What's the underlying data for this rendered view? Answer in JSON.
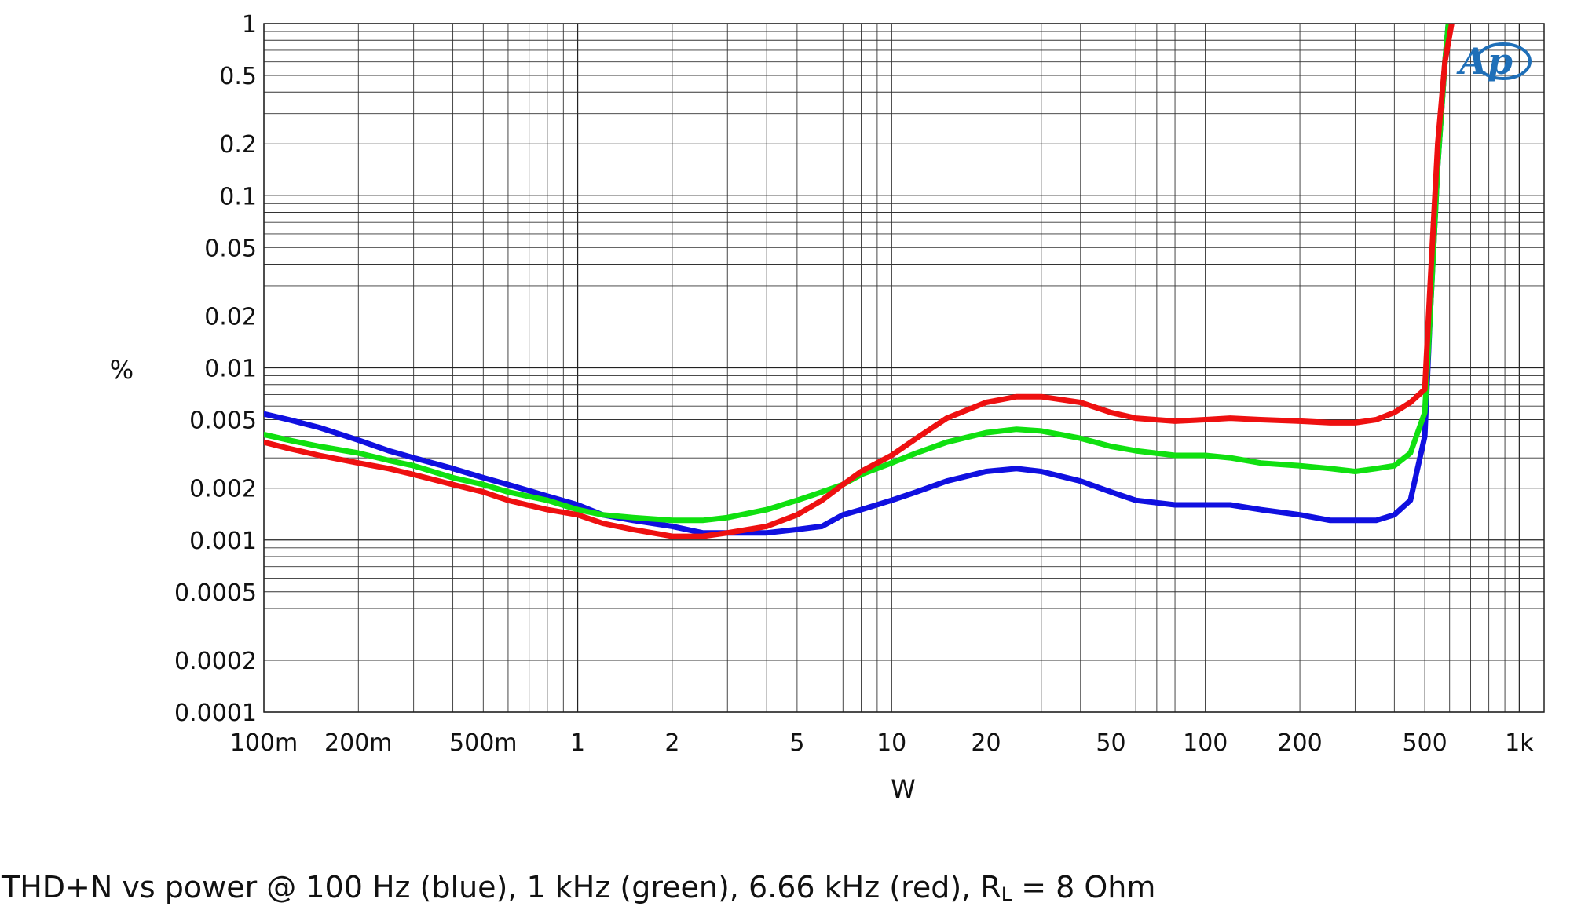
{
  "chart_data": {
    "type": "line",
    "xscale": "log",
    "yscale": "log",
    "xlim": [
      0.1,
      1200
    ],
    "ylim": [
      0.0001,
      1
    ],
    "xlabel": "W",
    "ylabel": "%",
    "grid": true,
    "x_ticks": [
      {
        "value": 0.1,
        "label": "100m"
      },
      {
        "value": 0.2,
        "label": "200m"
      },
      {
        "value": 0.5,
        "label": "500m"
      },
      {
        "value": 1,
        "label": "1"
      },
      {
        "value": 2,
        "label": "2"
      },
      {
        "value": 5,
        "label": "5"
      },
      {
        "value": 10,
        "label": "10"
      },
      {
        "value": 20,
        "label": "20"
      },
      {
        "value": 50,
        "label": "50"
      },
      {
        "value": 100,
        "label": "100"
      },
      {
        "value": 200,
        "label": "200"
      },
      {
        "value": 500,
        "label": "500"
      },
      {
        "value": 1000,
        "label": "1k"
      }
    ],
    "y_ticks": [
      {
        "value": 1,
        "label": "1"
      },
      {
        "value": 0.5,
        "label": "0.5"
      },
      {
        "value": 0.2,
        "label": "0.2"
      },
      {
        "value": 0.1,
        "label": "0.1"
      },
      {
        "value": 0.05,
        "label": "0.05"
      },
      {
        "value": 0.02,
        "label": "0.02"
      },
      {
        "value": 0.01,
        "label": "0.01"
      },
      {
        "value": 0.005,
        "label": "0.005"
      },
      {
        "value": 0.002,
        "label": "0.002"
      },
      {
        "value": 0.001,
        "label": "0.001"
      },
      {
        "value": 0.0005,
        "label": "0.0005"
      },
      {
        "value": 0.0002,
        "label": "0.0002"
      },
      {
        "value": 0.0001,
        "label": "0.0001"
      }
    ],
    "series": [
      {
        "color": "#1010e0",
        "points": [
          [
            0.1,
            0.0054
          ],
          [
            0.12,
            0.005
          ],
          [
            0.15,
            0.0045
          ],
          [
            0.2,
            0.0038
          ],
          [
            0.25,
            0.0033
          ],
          [
            0.3,
            0.003
          ],
          [
            0.4,
            0.0026
          ],
          [
            0.5,
            0.0023
          ],
          [
            0.6,
            0.0021
          ],
          [
            0.8,
            0.0018
          ],
          [
            1,
            0.0016
          ],
          [
            1.2,
            0.0014
          ],
          [
            1.5,
            0.0013
          ],
          [
            2,
            0.0012
          ],
          [
            2.5,
            0.0011
          ],
          [
            3,
            0.0011
          ],
          [
            4,
            0.0011
          ],
          [
            5,
            0.00115
          ],
          [
            6,
            0.0012
          ],
          [
            7,
            0.0014
          ],
          [
            8,
            0.0015
          ],
          [
            10,
            0.0017
          ],
          [
            12,
            0.0019
          ],
          [
            15,
            0.0022
          ],
          [
            20,
            0.0025
          ],
          [
            25,
            0.0026
          ],
          [
            30,
            0.0025
          ],
          [
            40,
            0.0022
          ],
          [
            50,
            0.0019
          ],
          [
            60,
            0.0017
          ],
          [
            80,
            0.0016
          ],
          [
            100,
            0.0016
          ],
          [
            120,
            0.0016
          ],
          [
            150,
            0.0015
          ],
          [
            200,
            0.0014
          ],
          [
            250,
            0.0013
          ],
          [
            300,
            0.0013
          ],
          [
            350,
            0.0013
          ],
          [
            400,
            0.0014
          ],
          [
            450,
            0.0017
          ],
          [
            500,
            0.004
          ],
          [
            520,
            0.02
          ],
          [
            550,
            0.15
          ],
          [
            580,
            0.6
          ],
          [
            600,
            1.2
          ]
        ]
      },
      {
        "color": "#10e010",
        "points": [
          [
            0.1,
            0.0041
          ],
          [
            0.12,
            0.0038
          ],
          [
            0.15,
            0.0035
          ],
          [
            0.2,
            0.0032
          ],
          [
            0.25,
            0.0029
          ],
          [
            0.3,
            0.0027
          ],
          [
            0.4,
            0.0023
          ],
          [
            0.5,
            0.0021
          ],
          [
            0.6,
            0.0019
          ],
          [
            0.8,
            0.0017
          ],
          [
            1,
            0.0015
          ],
          [
            1.2,
            0.0014
          ],
          [
            1.5,
            0.00135
          ],
          [
            2,
            0.0013
          ],
          [
            2.5,
            0.0013
          ],
          [
            3,
            0.00135
          ],
          [
            4,
            0.0015
          ],
          [
            5,
            0.0017
          ],
          [
            6,
            0.0019
          ],
          [
            7,
            0.0021
          ],
          [
            8,
            0.0024
          ],
          [
            10,
            0.0028
          ],
          [
            12,
            0.0032
          ],
          [
            15,
            0.0037
          ],
          [
            20,
            0.0042
          ],
          [
            25,
            0.0044
          ],
          [
            30,
            0.0043
          ],
          [
            40,
            0.0039
          ],
          [
            50,
            0.0035
          ],
          [
            60,
            0.0033
          ],
          [
            80,
            0.0031
          ],
          [
            100,
            0.0031
          ],
          [
            120,
            0.003
          ],
          [
            150,
            0.0028
          ],
          [
            200,
            0.0027
          ],
          [
            250,
            0.0026
          ],
          [
            300,
            0.0025
          ],
          [
            350,
            0.0026
          ],
          [
            400,
            0.0027
          ],
          [
            450,
            0.0032
          ],
          [
            500,
            0.0055
          ],
          [
            520,
            0.02
          ],
          [
            550,
            0.15
          ],
          [
            580,
            0.6
          ],
          [
            600,
            1.2
          ]
        ]
      },
      {
        "color": "#ee1010",
        "points": [
          [
            0.1,
            0.0037
          ],
          [
            0.12,
            0.0034
          ],
          [
            0.15,
            0.0031
          ],
          [
            0.2,
            0.0028
          ],
          [
            0.25,
            0.0026
          ],
          [
            0.3,
            0.0024
          ],
          [
            0.4,
            0.0021
          ],
          [
            0.5,
            0.0019
          ],
          [
            0.6,
            0.0017
          ],
          [
            0.8,
            0.0015
          ],
          [
            1,
            0.0014
          ],
          [
            1.2,
            0.00125
          ],
          [
            1.5,
            0.00115
          ],
          [
            2,
            0.00105
          ],
          [
            2.5,
            0.00105
          ],
          [
            3,
            0.0011
          ],
          [
            4,
            0.0012
          ],
          [
            5,
            0.0014
          ],
          [
            6,
            0.0017
          ],
          [
            7,
            0.0021
          ],
          [
            8,
            0.0025
          ],
          [
            10,
            0.0031
          ],
          [
            12,
            0.0039
          ],
          [
            15,
            0.0051
          ],
          [
            20,
            0.0063
          ],
          [
            25,
            0.0068
          ],
          [
            30,
            0.0068
          ],
          [
            40,
            0.0063
          ],
          [
            50,
            0.0055
          ],
          [
            60,
            0.0051
          ],
          [
            80,
            0.0049
          ],
          [
            100,
            0.005
          ],
          [
            120,
            0.0051
          ],
          [
            150,
            0.005
          ],
          [
            200,
            0.0049
          ],
          [
            250,
            0.0048
          ],
          [
            300,
            0.0048
          ],
          [
            350,
            0.005
          ],
          [
            400,
            0.0055
          ],
          [
            450,
            0.0063
          ],
          [
            500,
            0.0075
          ],
          [
            520,
            0.03
          ],
          [
            550,
            0.2
          ],
          [
            580,
            0.6
          ],
          [
            620,
            1.2
          ]
        ]
      }
    ]
  },
  "caption": {
    "main": "THD+N vs power @ 100 Hz (blue), 1 kHz (green), 6.66 kHz (red), R",
    "sub": "L",
    "tail": " = 8 Ohm"
  },
  "logo": {
    "text": "Ap",
    "color": "#1f6fb8"
  }
}
